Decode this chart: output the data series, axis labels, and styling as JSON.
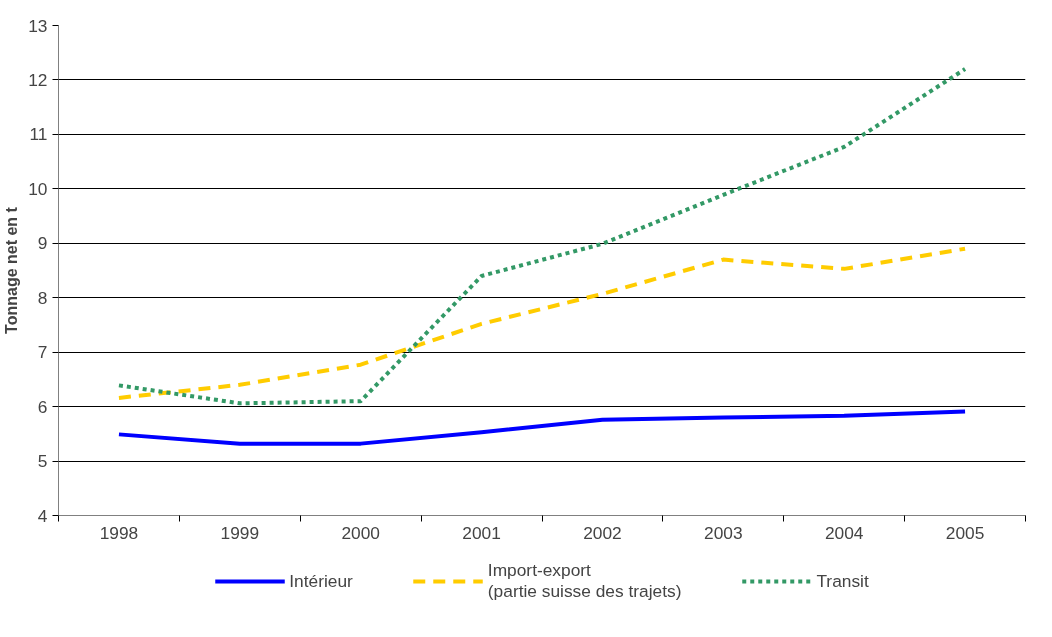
{
  "chart_data": {
    "type": "line",
    "ylabel": "Tonnage net en t",
    "categories": [
      "1998",
      "1999",
      "2000",
      "2001",
      "2002",
      "2003",
      "2004",
      "2005"
    ],
    "series": [
      {
        "name": "Intérieur",
        "color": "#0000ff",
        "line_style": "solid",
        "values": [
          5.49,
          5.32,
          5.32,
          5.53,
          5.76,
          5.8,
          5.83,
          5.91
        ]
      },
      {
        "name": "Import-export\n(partie suisse des trajets)",
        "color": "#ffcc00",
        "line_style": "dashed",
        "values": [
          6.16,
          6.4,
          6.77,
          7.52,
          8.07,
          8.7,
          8.53,
          8.9
        ]
      },
      {
        "name": "Transit",
        "color": "#339966",
        "line_style": "dotted",
        "values": [
          6.39,
          6.06,
          6.1,
          8.4,
          8.99,
          9.89,
          10.77,
          12.2
        ]
      }
    ],
    "ylim": [
      4,
      13
    ],
    "yticks": [
      4,
      5,
      6,
      7,
      8,
      9,
      10,
      11,
      12,
      13
    ],
    "grid": "y",
    "legend": "bottom",
    "marker": "none"
  }
}
